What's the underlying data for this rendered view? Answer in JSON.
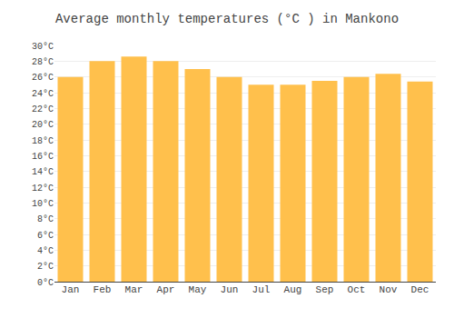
{
  "chart_data": {
    "type": "bar",
    "title": "Average monthly temperatures (°C ) in Mankono",
    "categories": [
      "Jan",
      "Feb",
      "Mar",
      "Apr",
      "May",
      "Jun",
      "Jul",
      "Aug",
      "Sep",
      "Oct",
      "Nov",
      "Dec"
    ],
    "values": [
      26.0,
      28.0,
      28.6,
      28.0,
      27.0,
      26.0,
      25.0,
      25.0,
      25.5,
      26.0,
      26.4,
      25.4
    ],
    "color": "#FFC04C",
    "ylim": [
      0,
      30
    ],
    "yticks": [
      {
        "value": 0,
        "label": "0°C"
      },
      {
        "value": 2,
        "label": "2°C"
      },
      {
        "value": 4,
        "label": "4°C"
      },
      {
        "value": 6,
        "label": "6°C"
      },
      {
        "value": 8,
        "label": "8°C"
      },
      {
        "value": 10,
        "label": "10°C"
      },
      {
        "value": 12,
        "label": "12°C"
      },
      {
        "value": 14,
        "label": "14°C"
      },
      {
        "value": 16,
        "label": "16°C"
      },
      {
        "value": 18,
        "label": "18°C"
      },
      {
        "value": 20,
        "label": "20°C"
      },
      {
        "value": 22,
        "label": "22°C"
      },
      {
        "value": 24,
        "label": "24°C"
      },
      {
        "value": 26,
        "label": "26°C"
      },
      {
        "value": 28,
        "label": "28°C"
      },
      {
        "value": 30,
        "label": "30°C"
      }
    ],
    "grid": true
  }
}
